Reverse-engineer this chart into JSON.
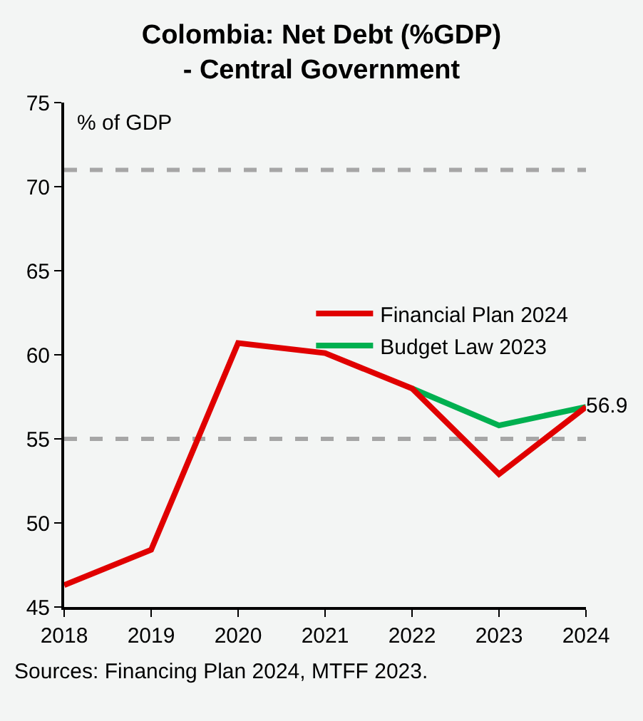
{
  "chart_data": {
    "type": "line",
    "title": "Colombia: Net Debt (%GDP)\n- Central Government",
    "ylabel": "% of GDP",
    "categories": [
      "2018",
      "2019",
      "2020",
      "2021",
      "2022",
      "2023",
      "2024"
    ],
    "series": [
      {
        "name": "Financial Plan 2024",
        "color": "#e00000",
        "values": [
          46.3,
          48.4,
          60.7,
          60.1,
          58.0,
          52.9,
          56.9
        ],
        "value_labels": [
          null,
          null,
          null,
          null,
          null,
          null,
          "56.9"
        ]
      },
      {
        "name": "Budget Law 2023",
        "color": "#00b050",
        "values": [
          null,
          null,
          null,
          null,
          58.0,
          55.8,
          56.9
        ]
      }
    ],
    "ylim": [
      45,
      75
    ],
    "yticks": [
      45,
      50,
      55,
      60,
      65,
      70,
      75
    ],
    "ref_lines": [
      {
        "axis": "y",
        "value": 71,
        "color": "#a6a6a6",
        "line_style": "dashed"
      },
      {
        "axis": "y",
        "value": 55,
        "color": "#a6a6a6",
        "line_style": "dashed"
      }
    ],
    "annotations": [
      "Sources: Financing Plan 2024, MTFF 2023."
    ],
    "grid": false,
    "legend": "right",
    "marker": "none",
    "line_style": "solid"
  }
}
